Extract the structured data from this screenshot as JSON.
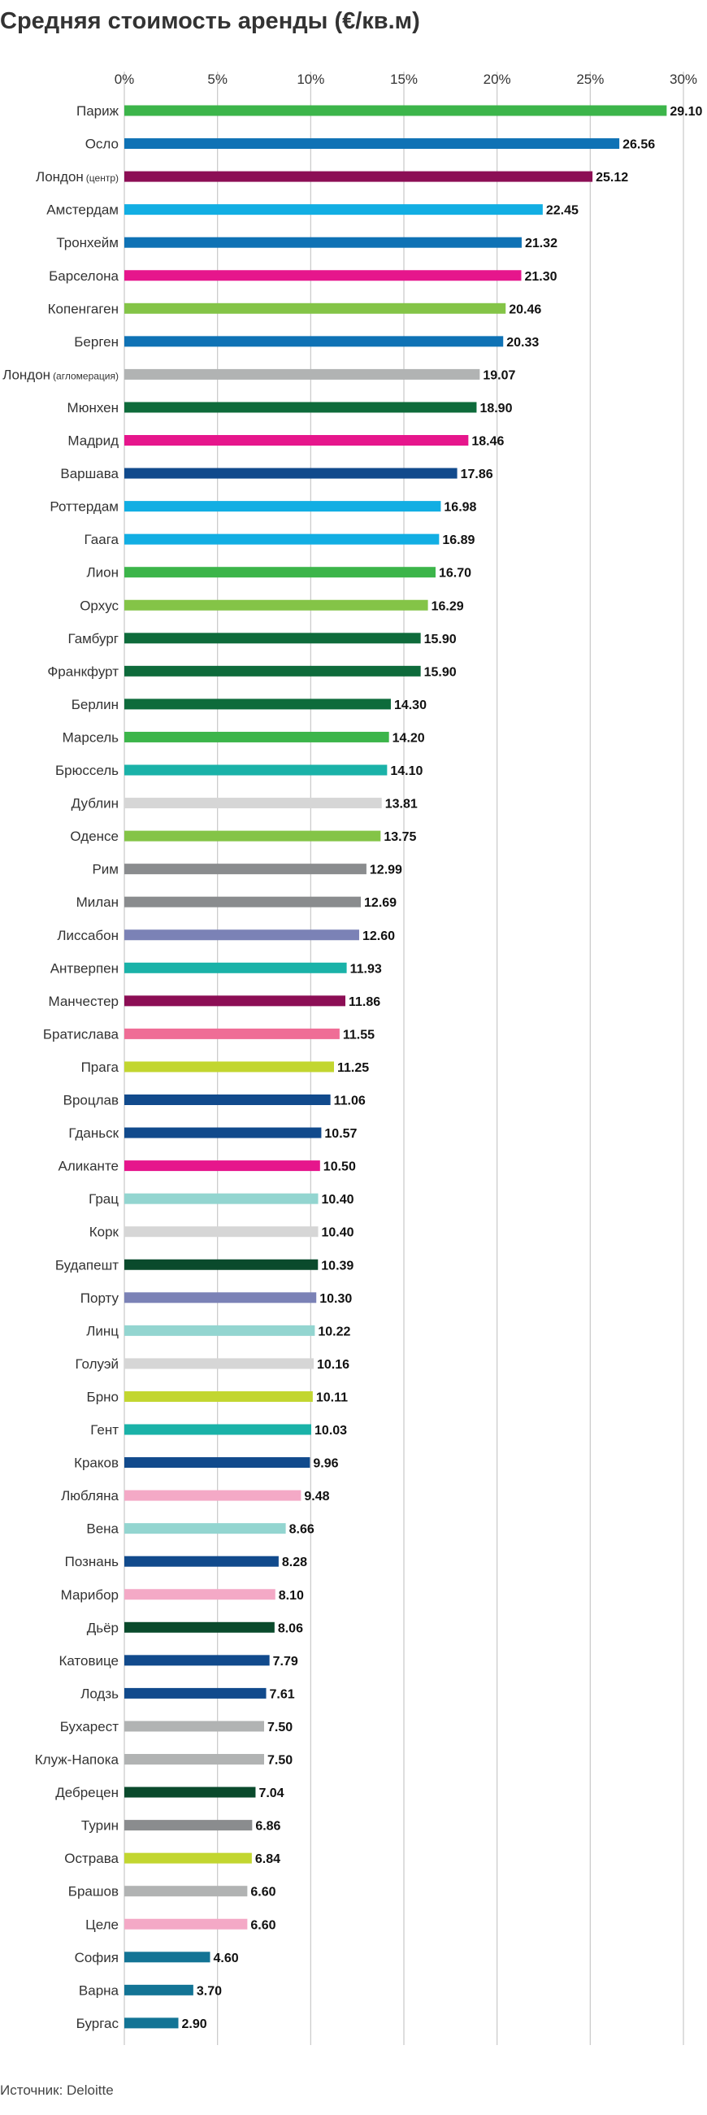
{
  "chart_data": {
    "type": "bar",
    "orientation": "horizontal",
    "title": "Средняя стоимость аренды (€/кв.м)",
    "source": "Источник: Deloitte",
    "xlim": [
      0,
      30
    ],
    "x_ticks": [
      {
        "value": 0,
        "label": "0%"
      },
      {
        "value": 5,
        "label": "5%"
      },
      {
        "value": 10,
        "label": "10%"
      },
      {
        "value": 15,
        "label": "15%"
      },
      {
        "value": 20,
        "label": "20%"
      },
      {
        "value": 25,
        "label": "25%"
      },
      {
        "value": 30,
        "label": "30%"
      }
    ],
    "grid": "vertical",
    "categories": [
      {
        "name": "Париж",
        "value": 29.1,
        "value_label": "29.10",
        "color": "#3cb54a"
      },
      {
        "name": "Осло",
        "value": 26.56,
        "value_label": "26.56",
        "color": "#0f72b5"
      },
      {
        "name": "Лондон",
        "name_note": "(центр)",
        "value": 25.12,
        "value_label": "25.12",
        "color": "#8c0e55"
      },
      {
        "name": "Амстердам",
        "value": 22.45,
        "value_label": "22.45",
        "color": "#12aee3"
      },
      {
        "name": "Тронхейм",
        "value": 21.32,
        "value_label": "21.32",
        "color": "#0f72b5"
      },
      {
        "name": "Барселона",
        "value": 21.3,
        "value_label": "21.30",
        "color": "#e6168c"
      },
      {
        "name": "Копенгаген",
        "value": 20.46,
        "value_label": "20.46",
        "color": "#84c447"
      },
      {
        "name": "Берген",
        "value": 20.33,
        "value_label": "20.33",
        "color": "#0f72b5"
      },
      {
        "name": "Лондон",
        "name_note": "(агломерация)",
        "value": 19.07,
        "value_label": "19.07",
        "color": "#b1b3b3"
      },
      {
        "name": "Мюнхен",
        "value": 18.9,
        "value_label": "18.90",
        "color": "#0e6b3b"
      },
      {
        "name": "Мадрид",
        "value": 18.46,
        "value_label": "18.46",
        "color": "#e6168c"
      },
      {
        "name": "Варшава",
        "value": 17.86,
        "value_label": "17.86",
        "color": "#114a8c"
      },
      {
        "name": "Роттердам",
        "value": 16.98,
        "value_label": "16.98",
        "color": "#12aee3"
      },
      {
        "name": "Гаага",
        "value": 16.89,
        "value_label": "16.89",
        "color": "#12aee3"
      },
      {
        "name": "Лион",
        "value": 16.7,
        "value_label": "16.70",
        "color": "#3cb54a"
      },
      {
        "name": "Орхус",
        "value": 16.29,
        "value_label": "16.29",
        "color": "#84c447"
      },
      {
        "name": "Гамбург",
        "value": 15.9,
        "value_label": "15.90",
        "color": "#0e6b3b"
      },
      {
        "name": "Франкфурт",
        "value": 15.9,
        "value_label": "15.90",
        "color": "#0e6b3b"
      },
      {
        "name": "Берлин",
        "value": 14.3,
        "value_label": "14.30",
        "color": "#0e6b3b"
      },
      {
        "name": "Марсель",
        "value": 14.2,
        "value_label": "14.20",
        "color": "#3cb54a"
      },
      {
        "name": "Брюссель",
        "value": 14.1,
        "value_label": "14.10",
        "color": "#1ab2a8"
      },
      {
        "name": "Дублин",
        "value": 13.81,
        "value_label": "13.81",
        "color": "#d6d6d6"
      },
      {
        "name": "Оденсе",
        "value": 13.75,
        "value_label": "13.75",
        "color": "#84c447"
      },
      {
        "name": "Рим",
        "value": 12.99,
        "value_label": "12.99",
        "color": "#8a8c8e"
      },
      {
        "name": "Милан",
        "value": 12.69,
        "value_label": "12.69",
        "color": "#8a8c8e"
      },
      {
        "name": "Лиссабон",
        "value": 12.6,
        "value_label": "12.60",
        "color": "#7b82b6"
      },
      {
        "name": "Антверпен",
        "value": 11.93,
        "value_label": "11.93",
        "color": "#1ab2a8"
      },
      {
        "name": "Манчестер",
        "value": 11.86,
        "value_label": "11.86",
        "color": "#8c0e55"
      },
      {
        "name": "Братислава",
        "value": 11.55,
        "value_label": "11.55",
        "color": "#ef6d96"
      },
      {
        "name": "Прага",
        "value": 11.25,
        "value_label": "11.25",
        "color": "#c2d630"
      },
      {
        "name": "Вроцлав",
        "value": 11.06,
        "value_label": "11.06",
        "color": "#114a8c"
      },
      {
        "name": "Гданьск",
        "value": 10.57,
        "value_label": "10.57",
        "color": "#114a8c"
      },
      {
        "name": "Аликанте",
        "value": 10.5,
        "value_label": "10.50",
        "color": "#e6168c"
      },
      {
        "name": "Грац",
        "value": 10.4,
        "value_label": "10.40",
        "color": "#93d5d0"
      },
      {
        "name": "Корк",
        "value": 10.4,
        "value_label": "10.40",
        "color": "#d6d6d6"
      },
      {
        "name": "Будапешт",
        "value": 10.39,
        "value_label": "10.39",
        "color": "#0a4a2c"
      },
      {
        "name": "Порту",
        "value": 10.3,
        "value_label": "10.30",
        "color": "#7b82b6"
      },
      {
        "name": "Линц",
        "value": 10.22,
        "value_label": "10.22",
        "color": "#93d5d0"
      },
      {
        "name": "Голуэй",
        "value": 10.16,
        "value_label": "10.16",
        "color": "#d6d6d6"
      },
      {
        "name": "Брно",
        "value": 10.11,
        "value_label": "10.11",
        "color": "#c2d630"
      },
      {
        "name": "Гент",
        "value": 10.03,
        "value_label": "10.03",
        "color": "#1ab2a8"
      },
      {
        "name": "Краков",
        "value": 9.96,
        "value_label": "9.96",
        "color": "#114a8c"
      },
      {
        "name": "Любляна",
        "value": 9.48,
        "value_label": "9.48",
        "color": "#f4a9c6"
      },
      {
        "name": "Вена",
        "value": 8.66,
        "value_label": "8.66",
        "color": "#93d5d0"
      },
      {
        "name": "Познань",
        "value": 8.28,
        "value_label": "8.28",
        "color": "#114a8c"
      },
      {
        "name": "Марибор",
        "value": 8.1,
        "value_label": "8.10",
        "color": "#f4a9c6"
      },
      {
        "name": "Дьёр",
        "value": 8.06,
        "value_label": "8.06",
        "color": "#0a4a2c"
      },
      {
        "name": "Катовице",
        "value": 7.79,
        "value_label": "7.79",
        "color": "#114a8c"
      },
      {
        "name": "Лодзь",
        "value": 7.61,
        "value_label": "7.61",
        "color": "#114a8c"
      },
      {
        "name": "Бухарест",
        "value": 7.5,
        "value_label": "7.50",
        "color": "#b1b3b3"
      },
      {
        "name": "Клуж-Напока",
        "value": 7.5,
        "value_label": "7.50",
        "color": "#b1b3b3"
      },
      {
        "name": "Дебрецен",
        "value": 7.04,
        "value_label": "7.04",
        "color": "#0a4a2c"
      },
      {
        "name": "Турин",
        "value": 6.86,
        "value_label": "6.86",
        "color": "#8a8c8e"
      },
      {
        "name": "Острава",
        "value": 6.84,
        "value_label": "6.84",
        "color": "#c2d630"
      },
      {
        "name": "Брашов",
        "value": 6.6,
        "value_label": "6.60",
        "color": "#b1b3b3"
      },
      {
        "name": "Целе",
        "value": 6.6,
        "value_label": "6.60",
        "color": "#f4a9c6"
      },
      {
        "name": "София",
        "value": 4.6,
        "value_label": "4.60",
        "color": "#137495"
      },
      {
        "name": "Варна",
        "value": 3.7,
        "value_label": "3.70",
        "color": "#137495"
      },
      {
        "name": "Бургас",
        "value": 2.9,
        "value_label": "2.90",
        "color": "#137495"
      }
    ]
  }
}
